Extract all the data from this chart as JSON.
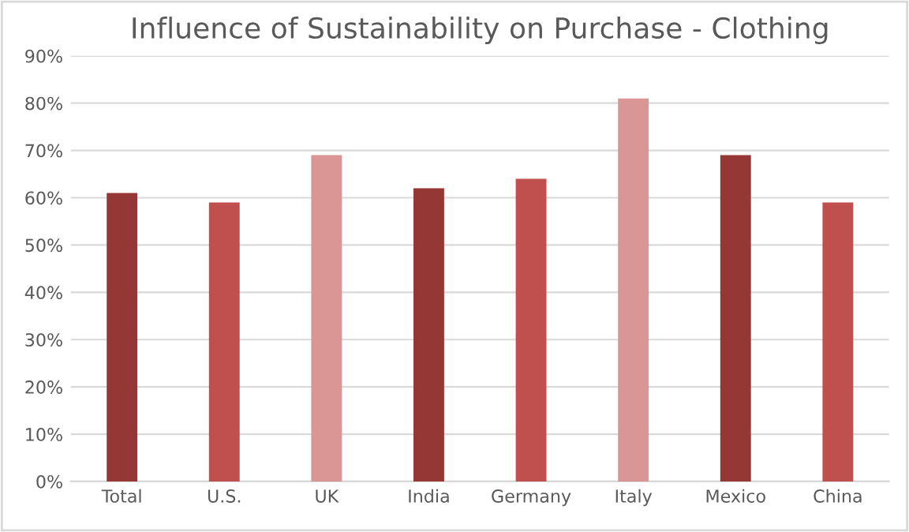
{
  "chart_data": {
    "type": "bar",
    "title": "Influence of Sustainability on Purchase - Clothing",
    "categories": [
      "Total",
      "U.S.",
      "UK",
      "India",
      "Germany",
      "Italy",
      "Mexico",
      "China"
    ],
    "values": [
      61,
      59,
      69,
      62,
      64,
      81,
      69,
      59
    ],
    "colors": [
      "#953735",
      "#c0504d",
      "#d99694",
      "#953735",
      "#c0504d",
      "#d99694",
      "#953735",
      "#c0504d"
    ],
    "ylim": [
      0,
      90
    ],
    "yticks": [
      {
        "value": 0,
        "label": "0%"
      },
      {
        "value": 10,
        "label": "10%"
      },
      {
        "value": 20,
        "label": "20%"
      },
      {
        "value": 30,
        "label": "30%"
      },
      {
        "value": 40,
        "label": "40%"
      },
      {
        "value": 50,
        "label": "50%"
      },
      {
        "value": 60,
        "label": "60%"
      },
      {
        "value": 70,
        "label": "70%"
      },
      {
        "value": 80,
        "label": "80%"
      },
      {
        "value": 90,
        "label": "90%"
      }
    ],
    "grid": "y",
    "legend": false
  }
}
